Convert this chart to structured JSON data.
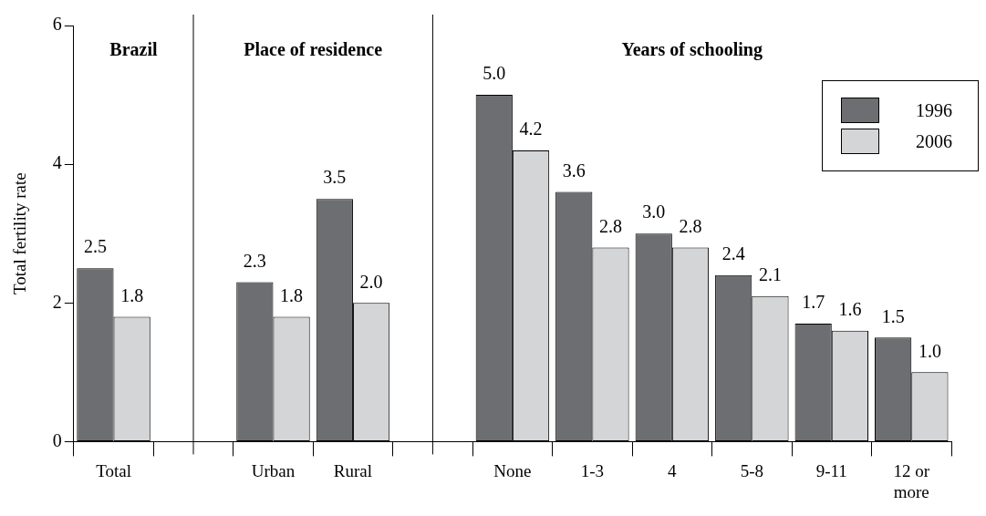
{
  "chart_data": {
    "type": "bar",
    "ylabel": "Total fertility rate",
    "categories": [
      "Total",
      null,
      "Urban",
      "Rural",
      null,
      "None",
      "1-3",
      "4",
      "5-8",
      "9-11",
      "12 or more"
    ],
    "series": [
      {
        "name": "1996",
        "color": "#6d6e71",
        "values": [
          2.5,
          null,
          2.3,
          3.5,
          null,
          5.0,
          3.6,
          3.0,
          2.4,
          1.7,
          1.5
        ],
        "value_labels": [
          "2.5",
          null,
          "2.3",
          "3.5",
          null,
          "5.0",
          "3.6",
          "3.0",
          "2.4",
          "1.7",
          "1.5"
        ]
      },
      {
        "name": "2006",
        "color": "#d4d5d7",
        "values": [
          1.8,
          null,
          1.8,
          2.0,
          null,
          4.2,
          2.8,
          2.8,
          2.1,
          1.6,
          1.0
        ],
        "value_labels": [
          "1.8",
          null,
          "1.8",
          "2.0",
          null,
          "4.2",
          "2.8",
          "2.8",
          "2.1",
          "1.6",
          "1.0"
        ]
      }
    ],
    "ylim": [
      0,
      6
    ],
    "yticks": [
      0,
      2,
      4,
      6
    ],
    "legend": "top right",
    "annotations": [
      "Brazil",
      "Place of residence",
      "Years of schooling"
    ]
  }
}
